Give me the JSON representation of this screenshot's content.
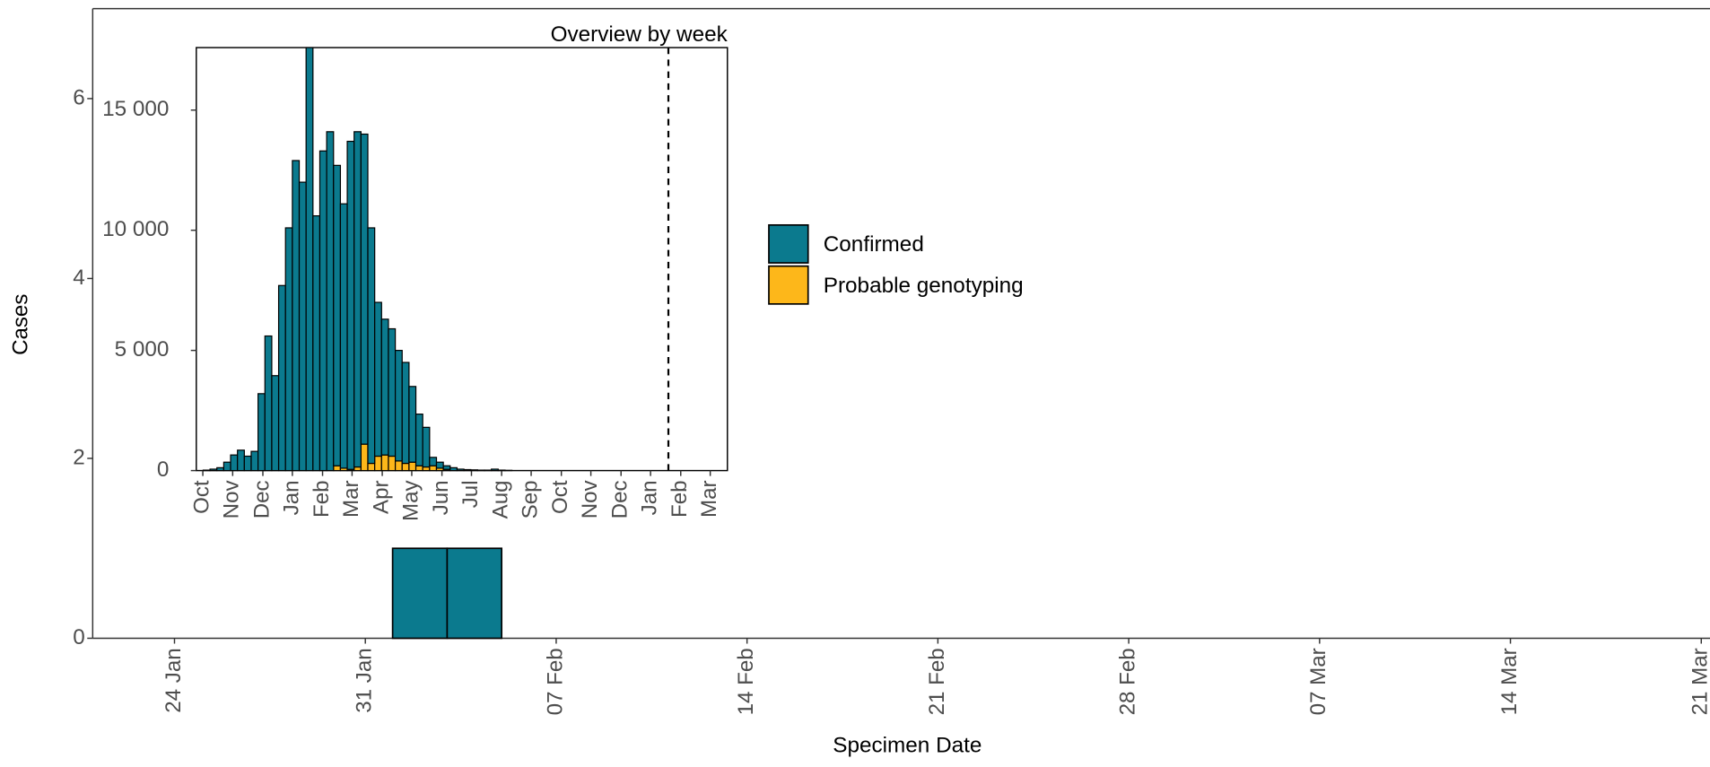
{
  "chart_data": [
    {
      "type": "bar",
      "x_label": "Specimen Date",
      "y_label": "Cases",
      "x": [
        "02 Feb",
        "04 Feb"
      ],
      "series": [
        {
          "name": "Confirmed",
          "color": "#0b7a8e",
          "values": [
            1,
            1
          ]
        },
        {
          "name": "Probable genotyping",
          "color": "#fdb71a",
          "values": [
            0,
            0
          ]
        }
      ],
      "xlim": [
        "21 Jan",
        "21 Mar"
      ],
      "xticks": [
        "24 Jan",
        "31 Jan",
        "07 Feb",
        "14 Feb",
        "21 Feb",
        "28 Feb",
        "07 Mar",
        "14 Mar",
        "21 Mar"
      ],
      "ylim": [
        0,
        7
      ],
      "yticks": [
        0,
        2,
        4,
        6
      ],
      "grid": false,
      "legend": "right"
    },
    {
      "type": "bar",
      "title": "Overview by week",
      "x": [
        0.5,
        1.5,
        2.5,
        3.5,
        4.5,
        5.5,
        6.5,
        7.5,
        8.5,
        9.5,
        10.5,
        11.5,
        12.5,
        13.5,
        14.5,
        15.5,
        16.5,
        17.5,
        18.5,
        19.5,
        20.5,
        21.5,
        22.5,
        23.5,
        24.5,
        25.5,
        26.5,
        27.5,
        28.5,
        29.5,
        30.5,
        31.5,
        32.5,
        33.5,
        34.5,
        35.5,
        36.5,
        37.5,
        38.5,
        39.5,
        40.5,
        41.5,
        42.5,
        43.5,
        44.5,
        45.5,
        46.5,
        47.5,
        48.5
      ],
      "series": [
        {
          "color": "#fdb71a",
          "values": [
            0,
            0,
            0,
            0,
            0,
            0,
            0,
            0,
            0,
            0,
            0,
            0,
            0,
            0,
            0,
            0,
            0,
            0,
            0,
            0,
            200,
            100,
            50,
            150,
            1100,
            300,
            600,
            650,
            600,
            400,
            300,
            350,
            200,
            150,
            200,
            100,
            50,
            0,
            0,
            0,
            0,
            0,
            0,
            0,
            0,
            0,
            0,
            0,
            0
          ]
        },
        {
          "color": "#0b7a8e",
          "values": [
            0,
            20,
            60,
            120,
            350,
            650,
            850,
            600,
            800,
            3200,
            5600,
            3950,
            7700,
            10100,
            12900,
            12000,
            17600,
            10600,
            13300,
            14100,
            12500,
            11000,
            13650,
            13950,
            12900,
            9800,
            6400,
            5650,
            5300,
            4600,
            4200,
            3150,
            2150,
            1650,
            350,
            250,
            150,
            120,
            60,
            40,
            30,
            20,
            20,
            60,
            20,
            10,
            0,
            0,
            0
          ]
        }
      ],
      "xlim": [
        0,
        77.4
      ],
      "xticks": [
        {
          "value": 0.95,
          "label": "Oct"
        },
        {
          "value": 5.3,
          "label": "Nov"
        },
        {
          "value": 9.7,
          "label": "Dec"
        },
        {
          "value": 14.0,
          "label": "Jan"
        },
        {
          "value": 18.4,
          "label": "Feb"
        },
        {
          "value": 22.7,
          "label": "Mar"
        },
        {
          "value": 27.1,
          "label": "Apr"
        },
        {
          "value": 31.4,
          "label": "May"
        },
        {
          "value": 35.8,
          "label": "Jun"
        },
        {
          "value": 40.1,
          "label": "Jul"
        },
        {
          "value": 44.5,
          "label": "Aug"
        },
        {
          "value": 48.8,
          "label": "Sep"
        },
        {
          "value": 53.2,
          "label": "Oct"
        },
        {
          "value": 57.5,
          "label": "Nov"
        },
        {
          "value": 61.9,
          "label": "Dec"
        },
        {
          "value": 66.2,
          "label": "Jan"
        },
        {
          "value": 70.6,
          "label": "Feb"
        },
        {
          "value": 74.9,
          "label": "Mar"
        }
      ],
      "ylim": [
        0,
        17600
      ],
      "yticks": [
        0,
        {
          "value": 5000,
          "label": "5 000"
        },
        {
          "value": 10000,
          "label": "10 000"
        },
        {
          "value": 15000,
          "label": "15 000"
        }
      ],
      "vline": 68.8
    }
  ]
}
